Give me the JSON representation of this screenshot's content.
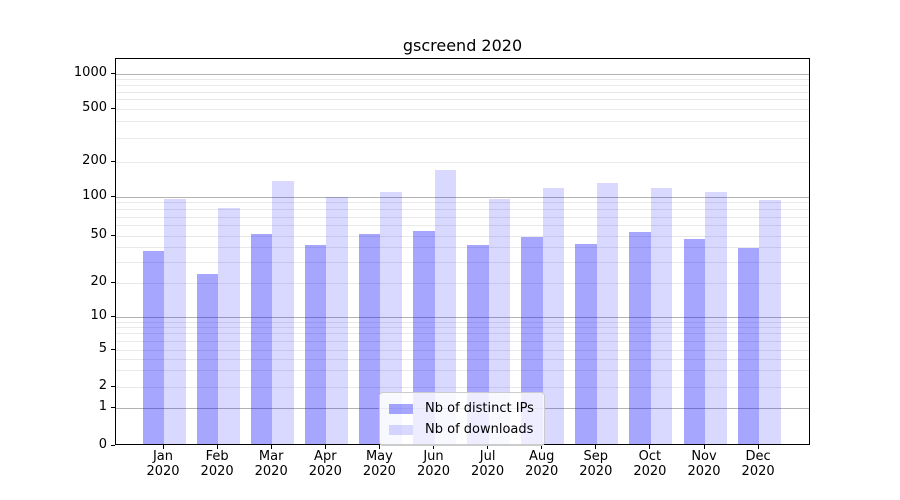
{
  "chart_data": {
    "type": "bar",
    "title": "gscreend 2020",
    "categories": [
      "Jan 2020",
      "Feb 2020",
      "Mar 2020",
      "Apr 2020",
      "May 2020",
      "Jun 2020",
      "Jul 2020",
      "Aug 2020",
      "Sep 2020",
      "Oct 2020",
      "Nov 2020",
      "Dec 2020"
    ],
    "series": [
      {
        "name": "Nb of distinct IPs",
        "color": "#0000ff",
        "alpha": 0.35,
        "values": [
          36,
          23,
          50,
          40,
          50,
          53,
          40,
          47,
          41,
          52,
          45,
          38
        ]
      },
      {
        "name": "Nb of downloads",
        "color": "#0000ff",
        "alpha": 0.15,
        "values": [
          93,
          79,
          131,
          96,
          107,
          165,
          93,
          116,
          126,
          115,
          106,
          92
        ]
      }
    ],
    "yscale": "symlog",
    "yticks": [
      0,
      1,
      2,
      5,
      10,
      20,
      50,
      100,
      200,
      500,
      1000
    ],
    "ylim": [
      0,
      1300
    ],
    "xlabel": "",
    "ylabel": "",
    "grid": {
      "which": "both",
      "major_color": "#b3b3b3",
      "minor_color": "#e9e9e9"
    },
    "legend_position": "lower center",
    "spine_color": "#000000",
    "background_color": "#ffffff"
  }
}
